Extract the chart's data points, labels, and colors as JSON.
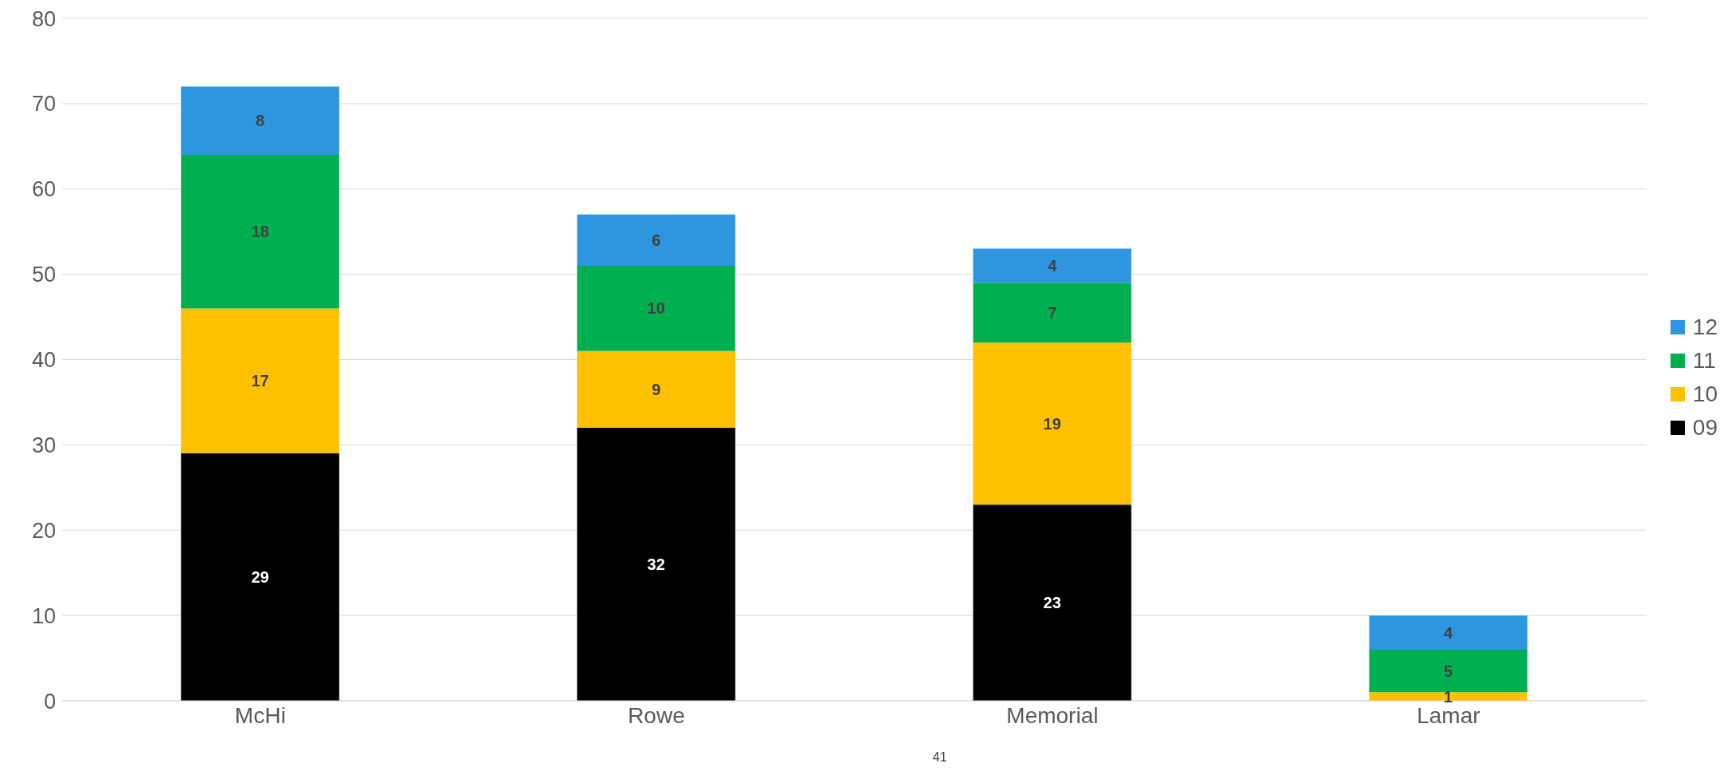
{
  "chart_data": {
    "type": "bar",
    "stacked": true,
    "categories": [
      "McHi",
      "Rowe",
      "Memorial",
      "Lamar"
    ],
    "series": [
      {
        "name": "09",
        "color": "#000000",
        "values": [
          29,
          32,
          23,
          0
        ],
        "value_labels": [
          "29",
          "32",
          "23",
          null
        ]
      },
      {
        "name": "10",
        "color": "#ffc000",
        "values": [
          17,
          9,
          19,
          1
        ],
        "value_labels": [
          "17",
          "9",
          "19",
          "1"
        ]
      },
      {
        "name": "11",
        "color": "#00b050",
        "values": [
          18,
          10,
          7,
          5
        ],
        "value_labels": [
          "18",
          "10",
          "7",
          "5"
        ]
      },
      {
        "name": "12",
        "color": "#2e95e0",
        "values": [
          8,
          6,
          4,
          4
        ],
        "value_labels": [
          "8",
          "6",
          "4",
          "4"
        ]
      }
    ],
    "ylim": [
      0,
      80
    ],
    "yticks": [
      0,
      10,
      20,
      30,
      40,
      50,
      60,
      70,
      80
    ],
    "grid": "y",
    "legend": "right",
    "annotations": [
      "41"
    ]
  }
}
